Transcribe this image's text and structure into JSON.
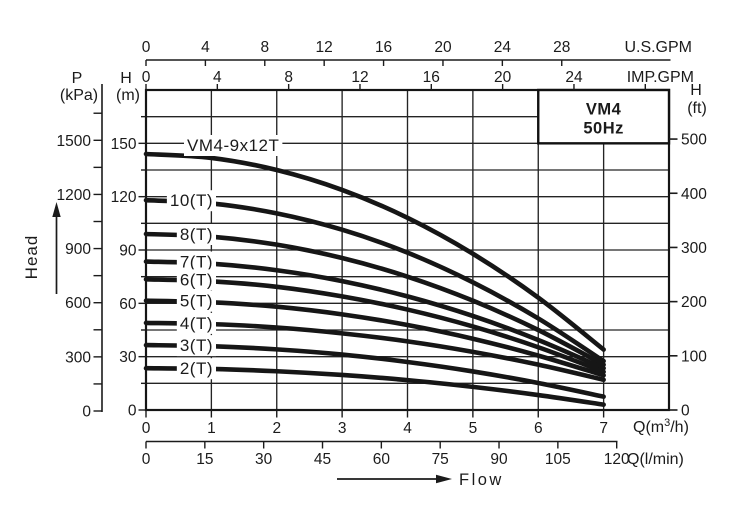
{
  "page": {
    "background": "#ffffff",
    "ink": "#1b1b1b"
  },
  "chart_data": {
    "type": "line",
    "title": "VM4 50Hz",
    "model_box": {
      "line1": "VM4",
      "line2": "50Hz"
    },
    "x_m3h": [
      0,
      1,
      2,
      3,
      4,
      5,
      6,
      7
    ],
    "xlim_m3h": [
      0,
      8
    ],
    "ylim_m": [
      0,
      180
    ],
    "grid": true,
    "series": [
      {
        "slug": "vm4-9x12t",
        "name": "VM4-9x12T",
        "head_m": [
          144,
          141.8,
          135,
          123.8,
          108.1,
          87.9,
          63.2,
          34
        ]
      },
      {
        "slug": "10t",
        "name": "10(T)",
        "head_m": [
          118,
          116.2,
          110.6,
          101.4,
          88.5,
          71.8,
          51.5,
          27.5
        ]
      },
      {
        "slug": "8t",
        "name": "8(T)",
        "head_m": [
          99,
          97.5,
          93,
          85.5,
          75,
          61.5,
          45,
          25.5
        ]
      },
      {
        "slug": "7t",
        "name": "7(T)",
        "head_m": [
          83.5,
          82.3,
          78.6,
          72.5,
          63.9,
          52.9,
          39.4,
          23.5
        ]
      },
      {
        "slug": "6t",
        "name": "6(T)",
        "head_m": [
          73.5,
          72.4,
          69.3,
          63.9,
          56.5,
          47,
          35.3,
          21.5
        ]
      },
      {
        "slug": "5t",
        "name": "5(T)",
        "head_m": [
          61.5,
          60.6,
          58.1,
          53.8,
          47.8,
          40.1,
          30.6,
          19.5
        ]
      },
      {
        "slug": "4t",
        "name": "4(T)",
        "head_m": [
          49,
          48.3,
          46.4,
          43.1,
          38.6,
          32.7,
          25.5,
          17
        ]
      },
      {
        "slug": "3t",
        "name": "3(T)",
        "head_m": [
          36.5,
          35.9,
          34.1,
          31.2,
          27,
          21.7,
          15.2,
          7.5
        ]
      },
      {
        "slug": "2t",
        "name": "2(T)",
        "head_m": [
          23.5,
          23.1,
          21.8,
          19.7,
          16.8,
          13,
          8.4,
          3
        ]
      }
    ],
    "axes": {
      "us_gpm": {
        "unit": "U.S.GPM",
        "ticks": [
          0,
          4,
          8,
          12,
          16,
          20,
          24,
          28
        ]
      },
      "imp_gpm": {
        "unit": "IMP.GPM",
        "ticks": [
          0,
          4,
          8,
          12,
          16,
          20,
          24
        ],
        "unlabeled_ticks": [
          28
        ]
      },
      "pressure_kpa": {
        "name": "P",
        "unit": "(kPa)",
        "labeled_ticks": [
          0,
          300,
          600,
          900,
          1200,
          1500
        ],
        "minor_ticks": [
          150,
          450,
          750,
          1050,
          1350,
          1650
        ]
      },
      "head_m": {
        "name": "H",
        "unit": "(m)",
        "labeled_ticks": [
          0,
          30,
          60,
          90,
          120,
          150
        ],
        "minor_ticks": [
          15,
          45,
          75,
          105,
          135,
          165
        ]
      },
      "head_ft": {
        "name": "H",
        "unit": "(ft)",
        "labeled_ticks": [
          0,
          100,
          200,
          300,
          400,
          500
        ]
      },
      "flow_m3h": {
        "unit": "Q(m³/h)",
        "ticks": [
          0,
          1,
          2,
          3,
          4,
          5,
          6,
          7
        ]
      },
      "flow_lmin": {
        "unit": "Q(l/min)",
        "ticks": [
          0,
          15,
          30,
          45,
          60,
          75,
          90,
          105,
          120
        ]
      }
    },
    "annotations": {
      "head_axis_label": "Head",
      "flow_axis_label": "Flow"
    }
  }
}
